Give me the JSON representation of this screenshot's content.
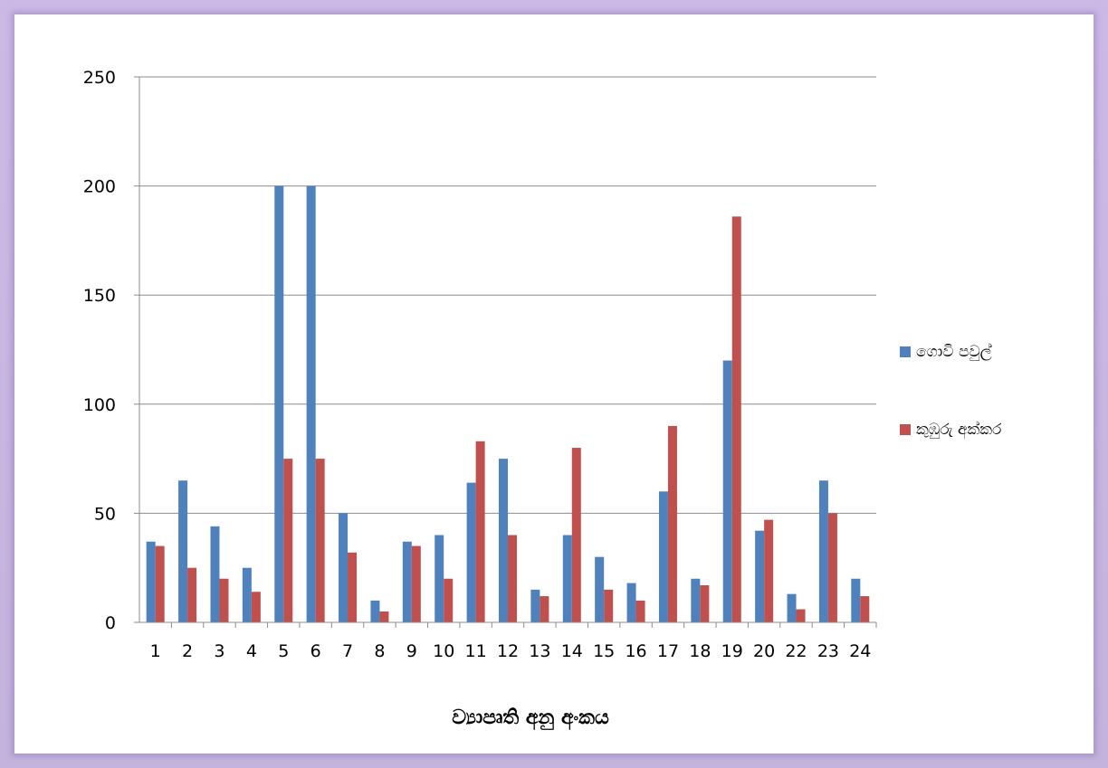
{
  "chart_data": {
    "type": "bar",
    "title": "",
    "xlabel": "ව්‍යාපෘති අනු අංකය",
    "ylabel": "",
    "ylim": [
      0,
      250
    ],
    "yticks": [
      0,
      50,
      100,
      150,
      200,
      250
    ],
    "grid": true,
    "legend_position": "right",
    "categories": [
      "1",
      "2",
      "3",
      "4",
      "5",
      "6",
      "7",
      "8",
      "9",
      "10",
      "11",
      "12",
      "13",
      "14",
      "15",
      "16",
      "17",
      "18",
      "19",
      "20",
      "22",
      "23",
      "24"
    ],
    "series": [
      {
        "name": "ගොවි පවුල්",
        "color": "#4f81bd",
        "values": [
          37,
          65,
          44,
          25,
          200,
          200,
          50,
          10,
          37,
          40,
          64,
          75,
          15,
          40,
          30,
          18,
          60,
          20,
          120,
          42,
          13,
          65,
          20
        ]
      },
      {
        "name": "කුඹුරු අක්කර",
        "color": "#c0504d",
        "values": [
          35,
          25,
          20,
          14,
          75,
          75,
          32,
          5,
          35,
          20,
          83,
          40,
          12,
          80,
          15,
          10,
          90,
          17,
          186,
          47,
          6,
          50,
          12
        ]
      }
    ]
  }
}
